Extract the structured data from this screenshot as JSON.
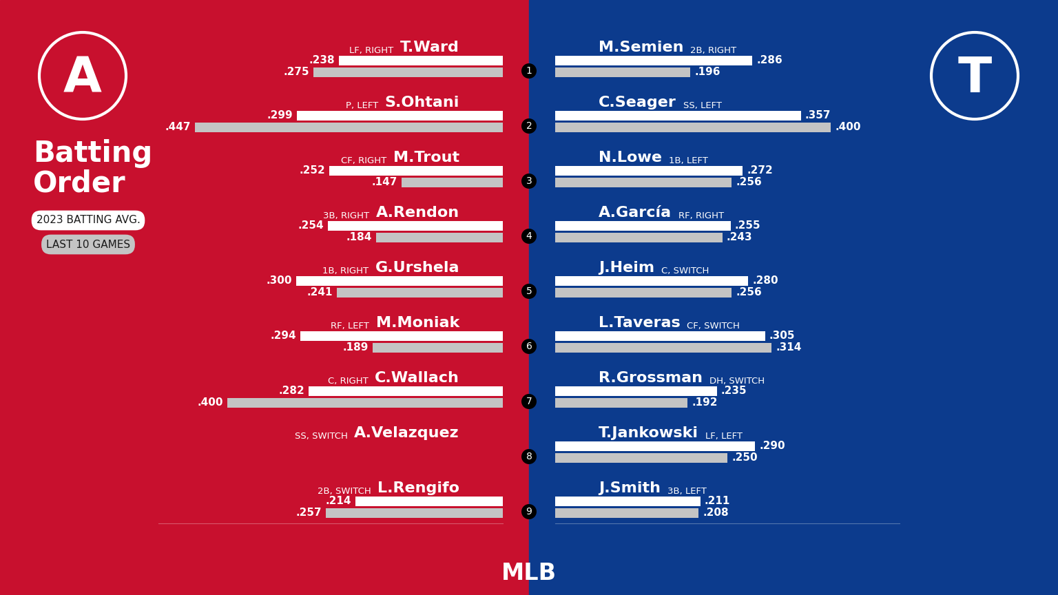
{
  "title": "Batting Order",
  "footer": "MLB",
  "batting_order": [
    1,
    2,
    3,
    4,
    5,
    6,
    7,
    8,
    9
  ],
  "chart_data": [
    {
      "type": "bar",
      "orientation": "horizontal",
      "logo": "A",
      "categories": [
        "T.Ward",
        "S.Ohtani",
        "M.Trout",
        "A.Rendon",
        "G.Urshela",
        "M.Moniak",
        "C.Wallach",
        "A.Velazquez",
        "L.Rengifo"
      ],
      "positions": [
        "LF, RIGHT",
        "P, LEFT",
        "CF, RIGHT",
        "3B, RIGHT",
        "1B, RIGHT",
        "RF, LEFT",
        "C, RIGHT",
        "SS, SWITCH",
        "2B, SWITCH"
      ],
      "series": [
        {
          "name": "2023 BATTING AVG.",
          "color": "#ffffff",
          "values": [
            0.238,
            0.299,
            0.252,
            0.254,
            0.3,
            0.294,
            0.282,
            null,
            0.214
          ],
          "value_labels": [
            ".238",
            ".299",
            ".252",
            ".254",
            ".300",
            ".294",
            ".282",
            null,
            ".214"
          ]
        },
        {
          "name": "LAST 10 GAMES",
          "color": "#c4c4c4",
          "values": [
            0.275,
            0.447,
            0.147,
            0.184,
            0.241,
            0.189,
            0.4,
            null,
            0.257
          ],
          "value_labels": [
            ".275",
            ".447",
            ".147",
            ".184",
            ".241",
            ".189",
            ".400",
            null,
            ".257"
          ]
        }
      ],
      "xlim": [
        0,
        0.5
      ],
      "tick_labels": false,
      "data_labels": true
    },
    {
      "type": "bar",
      "orientation": "horizontal",
      "logo": "T",
      "categories": [
        "M.Semien",
        "C.Seager",
        "N.Lowe",
        "A.García",
        "J.Heim",
        "L.Taveras",
        "R.Grossman",
        "T.Jankowski",
        "J.Smith"
      ],
      "positions": [
        "2B, RIGHT",
        "SS, LEFT",
        "1B, LEFT",
        "RF, RIGHT",
        "C, SWITCH",
        "CF, SWITCH",
        "DH, SWITCH",
        "LF, LEFT",
        "3B, LEFT"
      ],
      "series": [
        {
          "name": "2023 BATTING AVG.",
          "color": "#ffffff",
          "values": [
            0.286,
            0.357,
            0.272,
            0.255,
            0.28,
            0.305,
            0.235,
            0.29,
            0.211
          ],
          "value_labels": [
            ".286",
            ".357",
            ".272",
            ".255",
            ".280",
            ".305",
            ".235",
            ".290",
            ".211"
          ]
        },
        {
          "name": "LAST 10 GAMES",
          "color": "#c4c4c4",
          "values": [
            0.196,
            0.4,
            0.256,
            0.243,
            0.256,
            0.314,
            0.192,
            0.25,
            0.208
          ],
          "value_labels": [
            ".196",
            ".400",
            ".256",
            ".243",
            ".256",
            ".314",
            ".192",
            ".250",
            ".208"
          ]
        }
      ],
      "xlim": [
        0,
        0.5
      ],
      "tick_labels": false,
      "data_labels": true
    }
  ]
}
